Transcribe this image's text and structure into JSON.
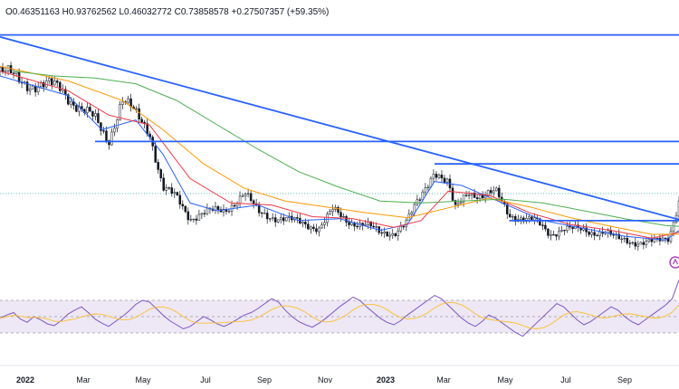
{
  "header": {
    "ohlc": "O0.46351163 H0.93762562 L0.46032772 C0.73858578 +0.27507357 (+59.35%)"
  },
  "colors": {
    "background": "#ffffff",
    "candle": "#131722",
    "trendline": "#2962ff",
    "ma_fast": "#2962ff",
    "ma_mid": "#f23645",
    "ma_slow": "#ff9800",
    "ma_long": "#4caf50",
    "rsi_line": "#7e57c2",
    "rsi_ma": "#fbc02d",
    "rsi_band": "#ede7f6",
    "dotted_level": "#26a69a",
    "grid": "#e0e3eb"
  },
  "chart_data": {
    "type": "line",
    "instrument_note": "price chart with candles, moving averages, trendlines and RSI pane",
    "x_ticks": [
      {
        "label": "2022",
        "bold": true
      },
      {
        "label": "Mar",
        "bold": false
      },
      {
        "label": "May",
        "bold": false
      },
      {
        "label": "Jul",
        "bold": false
      },
      {
        "label": "Sep",
        "bold": false
      },
      {
        "label": "Nov",
        "bold": false
      },
      {
        "label": "2023",
        "bold": true
      },
      {
        "label": "Mar",
        "bold": false
      },
      {
        "label": "May",
        "bold": false
      },
      {
        "label": "Jul",
        "bold": false
      },
      {
        "label": "Sep",
        "bold": false
      }
    ],
    "price_series": {
      "name": "",
      "points": [
        [
          0,
          2.05
        ],
        [
          0.03,
          1.95
        ],
        [
          0.06,
          1.9
        ],
        [
          0.09,
          1.88
        ],
        [
          0.12,
          1.65
        ],
        [
          0.14,
          1.55
        ],
        [
          0.16,
          1.35
        ],
        [
          0.18,
          1.75
        ],
        [
          0.2,
          1.6
        ],
        [
          0.22,
          1.45
        ],
        [
          0.24,
          0.85
        ],
        [
          0.26,
          0.75
        ],
        [
          0.28,
          0.55
        ],
        [
          0.3,
          0.6
        ],
        [
          0.33,
          0.62
        ],
        [
          0.36,
          0.8
        ],
        [
          0.38,
          0.6
        ],
        [
          0.41,
          0.55
        ],
        [
          0.44,
          0.5
        ],
        [
          0.47,
          0.45
        ],
        [
          0.49,
          0.62
        ],
        [
          0.51,
          0.52
        ],
        [
          0.54,
          0.48
        ],
        [
          0.56,
          0.38
        ],
        [
          0.58,
          0.4
        ],
        [
          0.6,
          0.52
        ],
        [
          0.62,
          0.75
        ],
        [
          0.64,
          1.05
        ],
        [
          0.66,
          0.9
        ],
        [
          0.67,
          0.62
        ],
        [
          0.69,
          0.82
        ],
        [
          0.71,
          0.78
        ],
        [
          0.73,
          0.8
        ],
        [
          0.75,
          0.58
        ],
        [
          0.77,
          0.55
        ],
        [
          0.79,
          0.5
        ],
        [
          0.81,
          0.38
        ],
        [
          0.83,
          0.45
        ],
        [
          0.85,
          0.42
        ],
        [
          0.87,
          0.4
        ],
        [
          0.89,
          0.42
        ],
        [
          0.91,
          0.32
        ],
        [
          0.93,
          0.3
        ],
        [
          0.95,
          0.31
        ],
        [
          0.97,
          0.3
        ],
        [
          0.985,
          0.33
        ],
        [
          1.0,
          0.74
        ]
      ]
    },
    "moving_averages": [
      {
        "name": "",
        "color_key": "ma_fast",
        "points": [
          [
            0,
            2.0
          ],
          [
            0.1,
            1.8
          ],
          [
            0.15,
            1.45
          ],
          [
            0.2,
            1.55
          ],
          [
            0.24,
            1.2
          ],
          [
            0.28,
            0.7
          ],
          [
            0.32,
            0.62
          ],
          [
            0.38,
            0.68
          ],
          [
            0.44,
            0.52
          ],
          [
            0.5,
            0.54
          ],
          [
            0.56,
            0.42
          ],
          [
            0.6,
            0.48
          ],
          [
            0.64,
            0.92
          ],
          [
            0.68,
            0.88
          ],
          [
            0.74,
            0.7
          ],
          [
            0.8,
            0.52
          ],
          [
            0.86,
            0.44
          ],
          [
            0.92,
            0.36
          ],
          [
            0.98,
            0.32
          ],
          [
            1.0,
            0.42
          ]
        ]
      },
      {
        "name": "",
        "color_key": "ma_mid",
        "points": [
          [
            0,
            2.05
          ],
          [
            0.1,
            1.85
          ],
          [
            0.16,
            1.6
          ],
          [
            0.22,
            1.5
          ],
          [
            0.28,
            0.95
          ],
          [
            0.34,
            0.7
          ],
          [
            0.4,
            0.68
          ],
          [
            0.46,
            0.56
          ],
          [
            0.52,
            0.54
          ],
          [
            0.58,
            0.45
          ],
          [
            0.62,
            0.52
          ],
          [
            0.66,
            0.82
          ],
          [
            0.72,
            0.78
          ],
          [
            0.78,
            0.6
          ],
          [
            0.84,
            0.48
          ],
          [
            0.9,
            0.42
          ],
          [
            0.96,
            0.34
          ],
          [
            1.0,
            0.4
          ]
        ]
      },
      {
        "name": "",
        "color_key": "ma_slow",
        "points": [
          [
            0,
            2.1
          ],
          [
            0.1,
            1.95
          ],
          [
            0.18,
            1.75
          ],
          [
            0.24,
            1.45
          ],
          [
            0.3,
            1.1
          ],
          [
            0.36,
            0.85
          ],
          [
            0.42,
            0.72
          ],
          [
            0.48,
            0.66
          ],
          [
            0.54,
            0.6
          ],
          [
            0.6,
            0.55
          ],
          [
            0.66,
            0.65
          ],
          [
            0.72,
            0.75
          ],
          [
            0.78,
            0.66
          ],
          [
            0.84,
            0.55
          ],
          [
            0.9,
            0.46
          ],
          [
            0.96,
            0.38
          ],
          [
            1.0,
            0.38
          ]
        ]
      },
      {
        "name": "",
        "color_key": "ma_long",
        "points": [
          [
            0.02,
            2.05
          ],
          [
            0.08,
            2.0
          ],
          [
            0.14,
            1.98
          ],
          [
            0.2,
            1.92
          ],
          [
            0.26,
            1.75
          ],
          [
            0.32,
            1.5
          ],
          [
            0.38,
            1.25
          ],
          [
            0.44,
            1.02
          ],
          [
            0.5,
            0.86
          ],
          [
            0.56,
            0.72
          ],
          [
            0.62,
            0.7
          ],
          [
            0.68,
            0.72
          ],
          [
            0.74,
            0.74
          ],
          [
            0.8,
            0.7
          ],
          [
            0.86,
            0.62
          ],
          [
            0.92,
            0.54
          ],
          [
            0.98,
            0.47
          ],
          [
            1.0,
            0.46
          ]
        ]
      }
    ],
    "trendlines": [
      {
        "kind": "diagonal",
        "from": [
          0,
          2.4
        ],
        "to": [
          1.0,
          0.53
        ]
      },
      {
        "kind": "horizontal",
        "from": [
          0,
          2.42
        ],
        "to": [
          1.0,
          2.42
        ]
      },
      {
        "kind": "horizontal",
        "from": [
          0.14,
          1.33
        ],
        "to": [
          1.0,
          1.33
        ]
      },
      {
        "kind": "horizontal",
        "from": [
          0.64,
          1.1
        ],
        "to": [
          1.0,
          1.1
        ]
      },
      {
        "kind": "horizontal",
        "from": [
          0.75,
          0.52
        ],
        "to": [
          1.0,
          0.52
        ]
      }
    ],
    "rsi_series": {
      "name": "",
      "values": [
        48,
        52,
        55,
        47,
        43,
        50,
        46,
        41,
        39,
        45,
        53,
        58,
        62,
        55,
        47,
        42,
        38,
        44,
        50,
        57,
        65,
        70,
        68,
        60,
        52,
        45,
        40,
        35,
        38,
        44,
        50,
        46,
        41,
        38,
        42,
        47,
        52,
        55,
        60,
        66,
        72,
        68,
        58,
        50,
        44,
        40,
        37,
        42,
        48,
        55,
        62,
        68,
        74,
        70,
        62,
        55,
        48,
        43,
        40,
        45,
        52,
        58,
        64,
        70,
        76,
        72,
        64,
        56,
        48,
        42,
        38,
        44,
        52,
        48,
        42,
        36,
        30,
        26,
        34,
        42,
        50,
        58,
        66,
        62,
        54,
        46,
        40,
        44,
        50,
        56,
        62,
        58,
        50,
        44,
        40,
        46,
        52,
        58,
        64,
        72,
        95
      ]
    },
    "rsi_range": [
      0,
      100
    ],
    "rsi_band": [
      30,
      70
    ]
  }
}
